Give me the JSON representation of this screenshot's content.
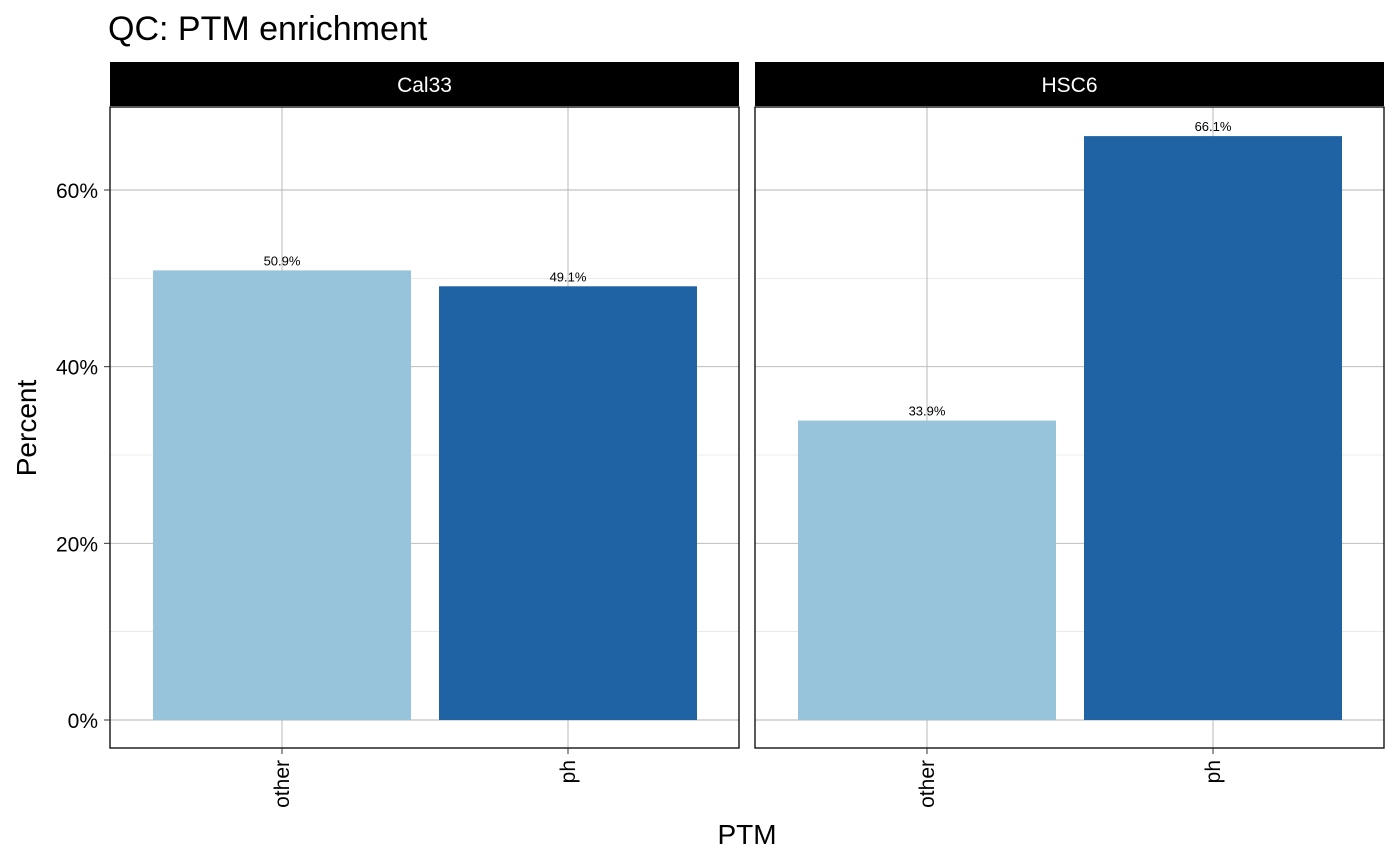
{
  "chart_data": {
    "type": "bar",
    "title": "QC: PTM enrichment",
    "xlabel": "PTM",
    "ylabel": "Percent",
    "categories": [
      "other",
      "ph"
    ],
    "ylim": [
      0,
      69
    ],
    "yticks": [
      0,
      20,
      40,
      60
    ],
    "ytick_labels": [
      "0%",
      "20%",
      "40%",
      "60%"
    ],
    "grid": true,
    "legend": "none",
    "category_colors": {
      "other": "#97C3DB",
      "ph": "#1F63A4"
    },
    "strip_color": "#000000",
    "panels": [
      {
        "name": "Cal33",
        "values": [
          50.9,
          49.1
        ],
        "labels": [
          "50.9%",
          "49.1%"
        ]
      },
      {
        "name": "HSC6",
        "values": [
          33.9,
          66.1
        ],
        "labels": [
          "33.9%",
          "66.1%"
        ]
      }
    ]
  }
}
